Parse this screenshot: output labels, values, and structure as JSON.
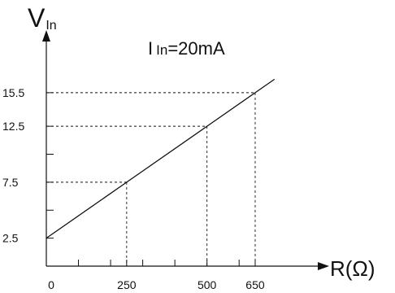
{
  "chart_data": {
    "type": "line",
    "ylabel_main": "V",
    "ylabel_sub": "In",
    "xlabel": "R(Ω)",
    "annotation_main": "I",
    "annotation_sub": "In",
    "annotation_value": "=20mA",
    "x_ticks": [
      {
        "value": 0,
        "label": "0"
      },
      {
        "value": 250,
        "label": "250"
      },
      {
        "value": 500,
        "label": "500"
      },
      {
        "value": 650,
        "label": "650"
      }
    ],
    "x_minor_ticks": [
      100,
      200,
      300,
      400,
      600
    ],
    "y_ticks": [
      {
        "value": 2.5,
        "label": "2.5"
      },
      {
        "value": 7.5,
        "label": "7.5"
      },
      {
        "value": 12.5,
        "label": "12.5"
      },
      {
        "value": 15.5,
        "label": "15.5"
      }
    ],
    "y_minor_ticks": [
      5,
      10
    ],
    "series": [
      {
        "x": [
          0,
          250,
          500,
          650,
          710
        ],
        "y": [
          2.5,
          7.5,
          12.5,
          15.5,
          16.7
        ]
      }
    ],
    "guides": [
      {
        "x": 250,
        "y": 7.5
      },
      {
        "x": 500,
        "y": 12.5
      },
      {
        "x": 650,
        "y": 15.5
      }
    ],
    "xlim": [
      0,
      860
    ],
    "ylim": [
      0,
      20
    ]
  }
}
